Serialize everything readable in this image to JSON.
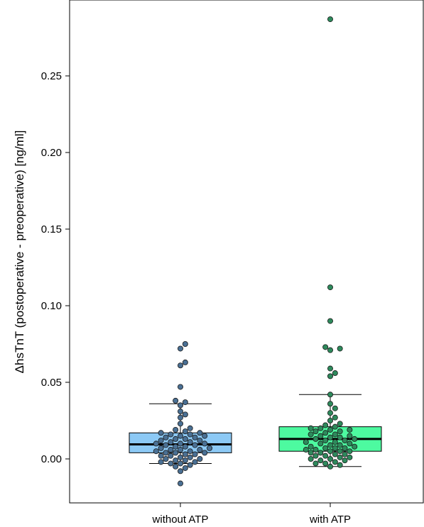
{
  "chart_data": {
    "type": "boxplot",
    "title": "",
    "xlabel": "",
    "ylabel": "ΔhsTnT (postoperative - preoperative) [ng/ml]",
    "ylim": [
      -0.027,
      0.297
    ],
    "yticks": [
      0.0,
      0.05,
      0.1,
      0.15,
      0.2,
      0.25
    ],
    "ytick_labels": [
      "0.00",
      "0.05",
      "0.10",
      "0.15",
      "0.20",
      "0.25"
    ],
    "grid": false,
    "legend": "none",
    "categories": [
      "without ATP",
      "with ATP"
    ],
    "series": [
      {
        "category": "without ATP",
        "box_color": "#8cc9f5",
        "point_color": "#4a7094",
        "q1": 0.004,
        "median": 0.0095,
        "q3": 0.017,
        "whisker_low": -0.003,
        "whisker_high": 0.036,
        "points": [
          -0.016,
          -0.008,
          -0.006,
          -0.005,
          -0.004,
          -0.003,
          -0.003,
          -0.002,
          -0.002,
          -0.001,
          -0.001,
          0.0,
          0.0,
          0.001,
          0.001,
          0.002,
          0.002,
          0.003,
          0.003,
          0.004,
          0.004,
          0.004,
          0.005,
          0.005,
          0.006,
          0.006,
          0.006,
          0.007,
          0.007,
          0.008,
          0.008,
          0.009,
          0.009,
          0.01,
          0.01,
          0.01,
          0.011,
          0.011,
          0.012,
          0.012,
          0.013,
          0.013,
          0.014,
          0.014,
          0.015,
          0.015,
          0.016,
          0.016,
          0.017,
          0.017,
          0.018,
          0.019,
          0.02,
          0.023,
          0.027,
          0.029,
          0.031,
          0.035,
          0.037,
          0.038,
          0.047,
          0.061,
          0.063,
          0.072,
          0.075
        ]
      },
      {
        "category": "with ATP",
        "box_color": "#4dfaa0",
        "point_color": "#2e8a5c",
        "q1": 0.005,
        "median": 0.013,
        "q3": 0.021,
        "whisker_low": -0.005,
        "whisker_high": 0.042,
        "points": [
          -0.005,
          -0.004,
          -0.003,
          -0.003,
          -0.002,
          -0.001,
          -0.001,
          0.0,
          0.0,
          0.001,
          0.001,
          0.002,
          0.002,
          0.003,
          0.003,
          0.004,
          0.004,
          0.005,
          0.005,
          0.005,
          0.006,
          0.006,
          0.007,
          0.007,
          0.007,
          0.008,
          0.008,
          0.009,
          0.009,
          0.01,
          0.01,
          0.011,
          0.011,
          0.012,
          0.012,
          0.013,
          0.013,
          0.014,
          0.014,
          0.015,
          0.015,
          0.016,
          0.016,
          0.017,
          0.018,
          0.018,
          0.019,
          0.019,
          0.02,
          0.02,
          0.021,
          0.022,
          0.023,
          0.025,
          0.027,
          0.03,
          0.033,
          0.036,
          0.042,
          0.054,
          0.056,
          0.059,
          0.071,
          0.072,
          0.073,
          0.09,
          0.112,
          0.287
        ]
      }
    ]
  }
}
